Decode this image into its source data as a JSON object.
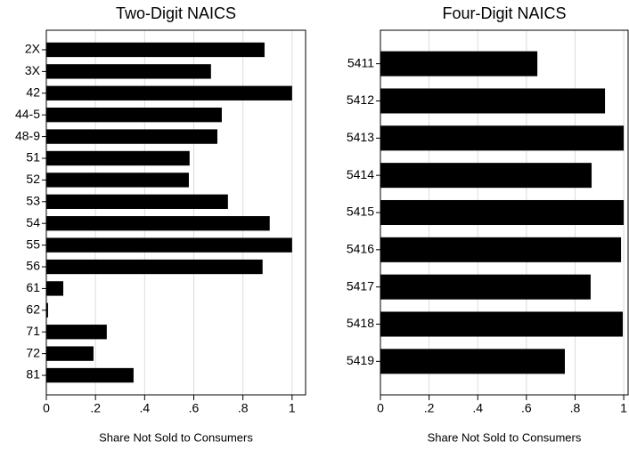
{
  "chart_data": [
    {
      "type": "barh",
      "title": "Two-Digit NAICS",
      "xlabel": "Share Not Sold to Consumers",
      "categories": [
        "2X",
        "3X",
        "42",
        "44-5",
        "48-9",
        "51",
        "52",
        "53",
        "54",
        "55",
        "56",
        "61",
        "62",
        "71",
        "72",
        "81"
      ],
      "values": [
        0.888,
        0.67,
        1.0,
        0.714,
        0.696,
        0.583,
        0.58,
        0.739,
        0.909,
        1.0,
        0.88,
        0.069,
        0.007,
        0.246,
        0.192,
        0.355
      ],
      "color": "#000000",
      "xlim": [
        0,
        1.055
      ],
      "xticks": [
        0,
        {
          "value": 0.2,
          "label": ".2"
        },
        {
          "value": 0.4,
          "label": ".4"
        },
        {
          "value": 0.6,
          "label": ".6"
        },
        {
          "value": 0.8,
          "label": ".8"
        },
        1
      ],
      "grid": true
    },
    {
      "type": "barh",
      "title": "Four-Digit NAICS",
      "xlabel": "Share Not Sold to Consumers",
      "categories": [
        "5411",
        "5412",
        "5413",
        "5414",
        "5415",
        "5416",
        "5417",
        "5418",
        "5419"
      ],
      "values": [
        0.645,
        0.923,
        1.0,
        0.868,
        1.0,
        0.989,
        0.864,
        0.996,
        0.758
      ],
      "color": "#000000",
      "xlim": [
        0,
        1.018
      ],
      "xticks": [
        0,
        {
          "value": 0.2,
          "label": ".2"
        },
        {
          "value": 0.4,
          "label": ".4"
        },
        {
          "value": 0.6,
          "label": ".6"
        },
        {
          "value": 0.8,
          "label": ".8"
        },
        1
      ],
      "grid": true
    }
  ]
}
